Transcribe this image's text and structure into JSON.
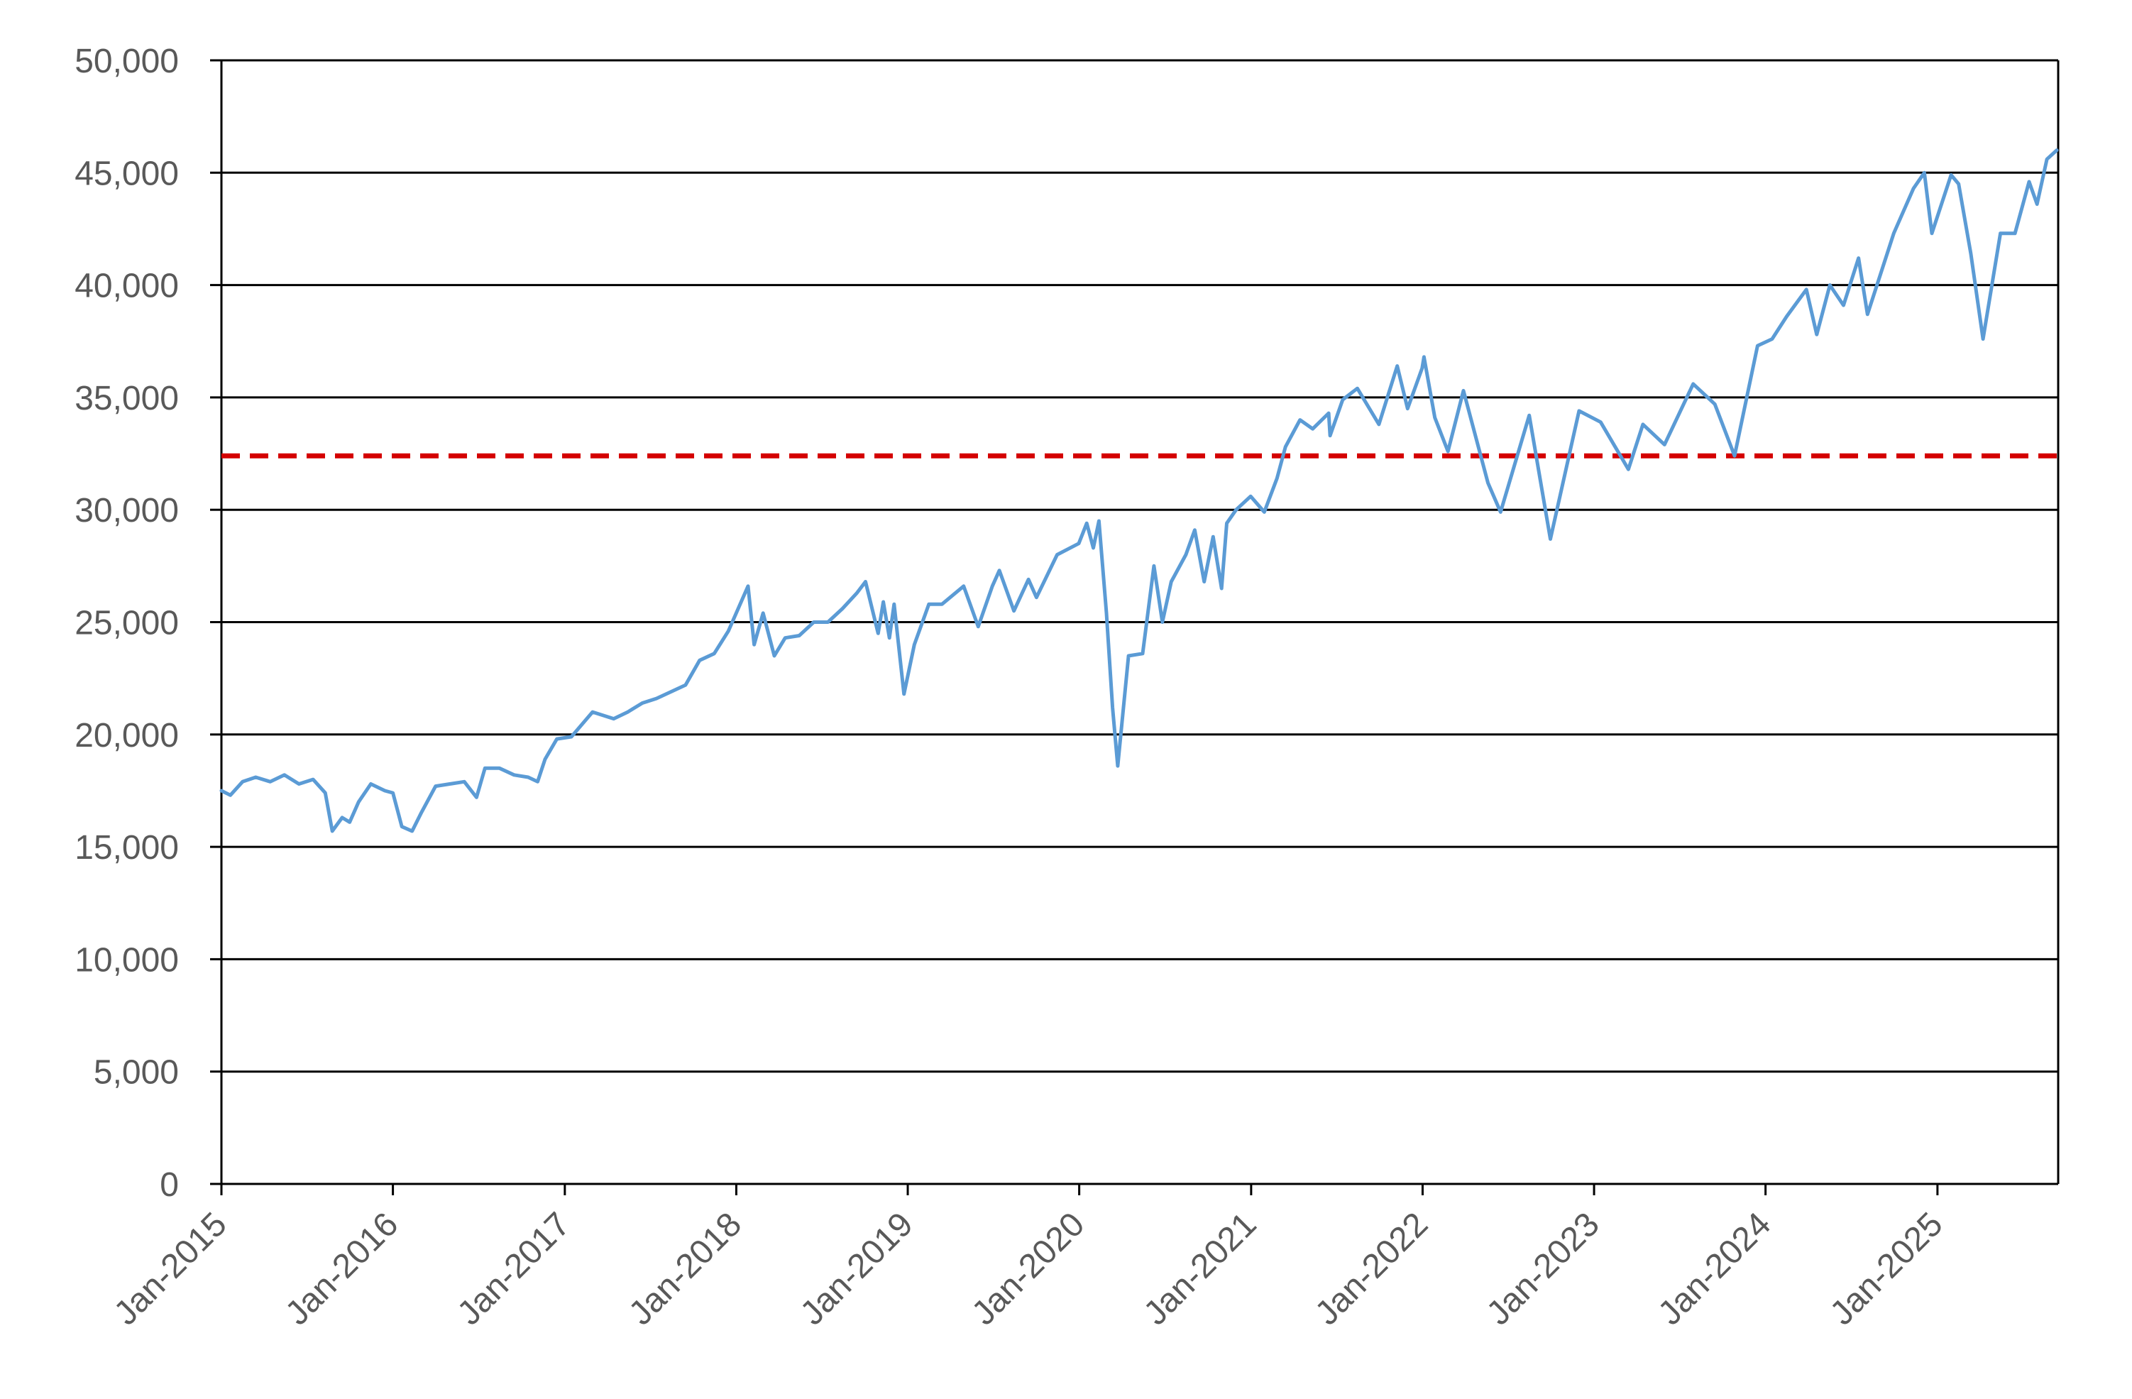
{
  "chart_data": {
    "type": "line",
    "title": "",
    "xlabel": "",
    "ylabel": "",
    "ylim": [
      0,
      50000
    ],
    "xlim": [
      "2015-01-01",
      "2025-09-15"
    ],
    "grid": true,
    "legend": "none",
    "y_ticks": [
      0,
      5000,
      10000,
      15000,
      20000,
      25000,
      30000,
      35000,
      40000,
      45000,
      50000
    ],
    "y_tick_labels": [
      "0",
      "5,000",
      "10,000",
      "15,000",
      "20,000",
      "25,000",
      "30,000",
      "35,000",
      "40,000",
      "45,000",
      "50,000"
    ],
    "x_ticks": [
      "2015-01-01",
      "2016-01-01",
      "2017-01-01",
      "2018-01-01",
      "2019-01-01",
      "2020-01-01",
      "2021-01-01",
      "2022-01-01",
      "2023-01-01",
      "2024-01-01",
      "2025-01-01"
    ],
    "x_tick_labels": [
      "Jan-2015",
      "Jan-2016",
      "Jan-2017",
      "Jan-2018",
      "Jan-2019",
      "Jan-2020",
      "Jan-2021",
      "Jan-2022",
      "Jan-2023",
      "Jan-2024",
      "Jan-2025"
    ],
    "reference_line": {
      "value": 32400,
      "color": "#d40000",
      "style": "dashed"
    },
    "series": [
      {
        "color": "#5b9bd5",
        "points": [
          [
            "2015-01-01",
            17500
          ],
          [
            "2015-01-20",
            17300
          ],
          [
            "2015-02-15",
            17900
          ],
          [
            "2015-03-15",
            18100
          ],
          [
            "2015-04-15",
            17900
          ],
          [
            "2015-05-15",
            18200
          ],
          [
            "2015-06-15",
            17800
          ],
          [
            "2015-07-15",
            18000
          ],
          [
            "2015-08-10",
            17400
          ],
          [
            "2015-08-25",
            15700
          ],
          [
            "2015-09-15",
            16300
          ],
          [
            "2015-10-01",
            16100
          ],
          [
            "2015-10-20",
            17000
          ],
          [
            "2015-11-15",
            17800
          ],
          [
            "2015-12-15",
            17500
          ],
          [
            "2016-01-01",
            17400
          ],
          [
            "2016-01-20",
            15900
          ],
          [
            "2016-02-11",
            15700
          ],
          [
            "2016-03-01",
            16500
          ],
          [
            "2016-04-01",
            17700
          ],
          [
            "2016-05-01",
            17800
          ],
          [
            "2016-06-01",
            17900
          ],
          [
            "2016-06-27",
            17200
          ],
          [
            "2016-07-15",
            18500
          ],
          [
            "2016-08-15",
            18500
          ],
          [
            "2016-09-15",
            18200
          ],
          [
            "2016-10-15",
            18100
          ],
          [
            "2016-11-04",
            17900
          ],
          [
            "2016-11-20",
            18900
          ],
          [
            "2016-12-15",
            19800
          ],
          [
            "2017-01-15",
            19900
          ],
          [
            "2017-03-01",
            21000
          ],
          [
            "2017-04-15",
            20700
          ],
          [
            "2017-05-15",
            21000
          ],
          [
            "2017-06-15",
            21400
          ],
          [
            "2017-07-15",
            21600
          ],
          [
            "2017-08-15",
            21900
          ],
          [
            "2017-09-15",
            22200
          ],
          [
            "2017-10-15",
            23300
          ],
          [
            "2017-11-15",
            23600
          ],
          [
            "2017-12-15",
            24600
          ],
          [
            "2018-01-26",
            26600
          ],
          [
            "2018-02-08",
            24000
          ],
          [
            "2018-02-27",
            25400
          ],
          [
            "2018-03-23",
            23500
          ],
          [
            "2018-04-15",
            24300
          ],
          [
            "2018-05-15",
            24400
          ],
          [
            "2018-06-15",
            25000
          ],
          [
            "2018-07-15",
            25000
          ],
          [
            "2018-08-15",
            25600
          ],
          [
            "2018-09-15",
            26300
          ],
          [
            "2018-10-03",
            26800
          ],
          [
            "2018-10-30",
            24500
          ],
          [
            "2018-11-10",
            25900
          ],
          [
            "2018-11-23",
            24300
          ],
          [
            "2018-12-03",
            25800
          ],
          [
            "2018-12-24",
            21800
          ],
          [
            "2019-01-15",
            24000
          ],
          [
            "2019-02-15",
            25800
          ],
          [
            "2019-03-15",
            25800
          ],
          [
            "2019-04-30",
            26600
          ],
          [
            "2019-05-31",
            24800
          ],
          [
            "2019-06-30",
            26600
          ],
          [
            "2019-07-15",
            27300
          ],
          [
            "2019-08-15",
            25500
          ],
          [
            "2019-09-15",
            26900
          ],
          [
            "2019-10-02",
            26100
          ],
          [
            "2019-11-15",
            28000
          ],
          [
            "2019-12-31",
            28500
          ],
          [
            "2020-01-17",
            29400
          ],
          [
            "2020-01-31",
            28300
          ],
          [
            "2020-02-12",
            29500
          ],
          [
            "2020-02-28",
            25400
          ],
          [
            "2020-03-12",
            21200
          ],
          [
            "2020-03-23",
            18600
          ],
          [
            "2020-04-15",
            23500
          ],
          [
            "2020-05-15",
            23600
          ],
          [
            "2020-06-08",
            27500
          ],
          [
            "2020-06-26",
            25000
          ],
          [
            "2020-07-15",
            26800
          ],
          [
            "2020-08-15",
            28000
          ],
          [
            "2020-09-03",
            29100
          ],
          [
            "2020-09-23",
            26800
          ],
          [
            "2020-10-12",
            28800
          ],
          [
            "2020-10-30",
            26500
          ],
          [
            "2020-11-10",
            29400
          ],
          [
            "2020-11-30",
            30000
          ],
          [
            "2020-12-31",
            30600
          ],
          [
            "2021-01-29",
            29900
          ],
          [
            "2021-02-25",
            31400
          ],
          [
            "2021-03-15",
            32800
          ],
          [
            "2021-04-15",
            34000
          ],
          [
            "2021-05-12",
            33600
          ],
          [
            "2021-06-15",
            34300
          ],
          [
            "2021-06-18",
            33300
          ],
          [
            "2021-07-15",
            34900
          ],
          [
            "2021-08-15",
            35400
          ],
          [
            "2021-09-30",
            33800
          ],
          [
            "2021-11-08",
            36400
          ],
          [
            "2021-11-30",
            34500
          ],
          [
            "2021-12-31",
            36300
          ],
          [
            "2022-01-04",
            36800
          ],
          [
            "2022-01-27",
            34100
          ],
          [
            "2022-02-24",
            32600
          ],
          [
            "2022-03-29",
            35300
          ],
          [
            "2022-05-20",
            31200
          ],
          [
            "2022-06-16",
            29900
          ],
          [
            "2022-08-16",
            34200
          ],
          [
            "2022-09-30",
            28700
          ],
          [
            "2022-11-30",
            34400
          ],
          [
            "2023-01-15",
            33900
          ],
          [
            "2023-03-15",
            31800
          ],
          [
            "2023-04-15",
            33800
          ],
          [
            "2023-05-31",
            32900
          ],
          [
            "2023-07-31",
            35600
          ],
          [
            "2023-09-15",
            34700
          ],
          [
            "2023-10-27",
            32400
          ],
          [
            "2023-12-15",
            37300
          ],
          [
            "2024-01-15",
            37600
          ],
          [
            "2024-02-15",
            38600
          ],
          [
            "2024-03-28",
            39800
          ],
          [
            "2024-04-19",
            37800
          ],
          [
            "2024-05-17",
            40000
          ],
          [
            "2024-06-15",
            39100
          ],
          [
            "2024-07-17",
            41200
          ],
          [
            "2024-08-05",
            38700
          ],
          [
            "2024-09-30",
            42300
          ],
          [
            "2024-11-11",
            44300
          ],
          [
            "2024-12-04",
            45000
          ],
          [
            "2024-12-20",
            42300
          ],
          [
            "2025-01-30",
            44900
          ],
          [
            "2025-02-15",
            44500
          ],
          [
            "2025-03-13",
            41400
          ],
          [
            "2025-04-08",
            37600
          ],
          [
            "2025-05-15",
            42300
          ],
          [
            "2025-06-15",
            42300
          ],
          [
            "2025-07-15",
            44600
          ],
          [
            "2025-08-01",
            43600
          ],
          [
            "2025-08-22",
            45600
          ],
          [
            "2025-09-12",
            46000
          ]
        ]
      }
    ]
  }
}
